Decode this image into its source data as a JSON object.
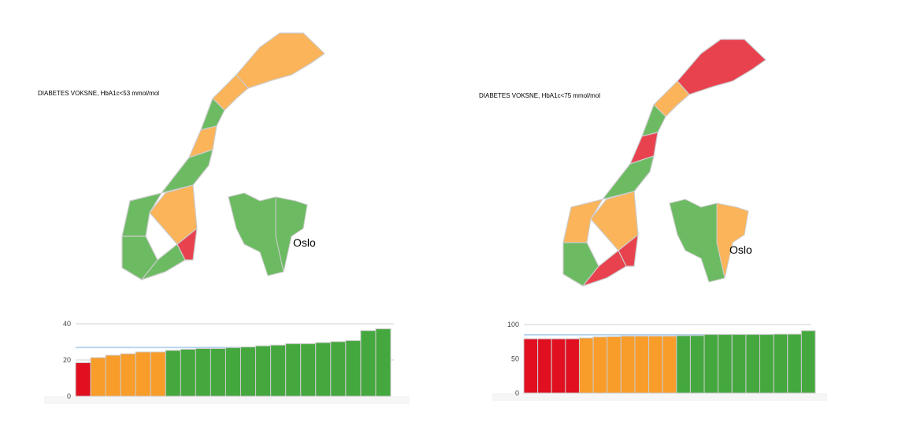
{
  "colors": {
    "red": "#e01020",
    "orange": "#f89c2a",
    "green": "#45a83f",
    "map_red": "#e8424f",
    "map_orange": "#fbb45a",
    "map_green": "#6cbb62",
    "reference": "#b8d4ee",
    "grid": "#d0d0d0",
    "bar_border": "#cccccc"
  },
  "panels": [
    {
      "title": "DIABETES VOKSNE, HbA1c<53 mmol/mol",
      "inset_label": "Oslo",
      "region_colors": [
        "orange",
        "orange",
        "green",
        "orange",
        "green",
        "orange",
        "green",
        "green",
        "green",
        "red"
      ],
      "inset_colors": [
        "green",
        "green"
      ]
    },
    {
      "title": "DIABETES VOKSNE, HbA1c<75 mmol/mol",
      "inset_label": "Oslo",
      "region_colors": [
        "red",
        "orange",
        "green",
        "red",
        "green",
        "orange",
        "orange",
        "green",
        "red",
        "red"
      ],
      "inset_colors": [
        "green",
        "orange"
      ]
    }
  ],
  "chart_data": [
    {
      "type": "bar",
      "ylim": [
        0,
        40
      ],
      "yticks": [
        "0",
        "20",
        "40"
      ],
      "reference_line": 26.9,
      "values": [
        18.5,
        21.3,
        22.6,
        23.4,
        24.4,
        24.4,
        25.3,
        25.9,
        26.3,
        26.3,
        26.8,
        27.2,
        27.8,
        28.2,
        29.0,
        29.0,
        29.6,
        30.1,
        30.7,
        36.2,
        37.2
      ],
      "bar_colors": [
        "red",
        "orange",
        "orange",
        "orange",
        "orange",
        "orange",
        "green",
        "green",
        "green",
        "green",
        "green",
        "green",
        "green",
        "green",
        "green",
        "green",
        "green",
        "green",
        "green",
        "green",
        "green"
      ]
    },
    {
      "type": "bar",
      "ylim": [
        0,
        100
      ],
      "yticks": [
        "0",
        "50",
        "100"
      ],
      "reference_line": 85,
      "values": [
        79.2,
        79.2,
        79.2,
        79.2,
        80.4,
        81.9,
        82.3,
        83.1,
        83.1,
        83.1,
        83.1,
        83.8,
        84,
        85.5,
        85.5,
        85.5,
        85.5,
        85.5,
        86,
        86,
        91
      ],
      "bar_colors": [
        "red",
        "red",
        "red",
        "red",
        "orange",
        "orange",
        "orange",
        "orange",
        "orange",
        "orange",
        "orange",
        "green",
        "green",
        "green",
        "green",
        "green",
        "green",
        "green",
        "green",
        "green",
        "green"
      ]
    }
  ]
}
